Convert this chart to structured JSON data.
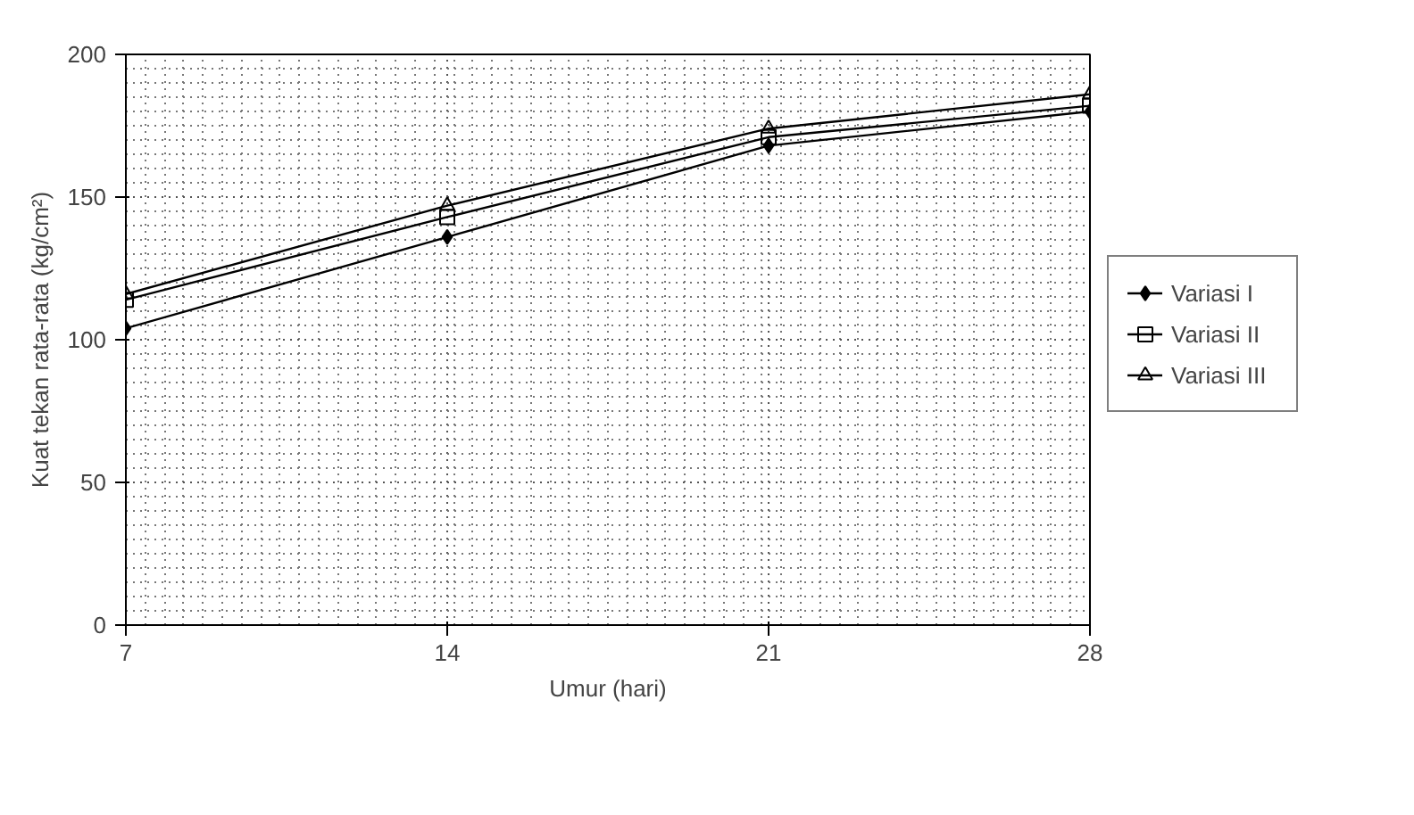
{
  "chart_data": {
    "type": "line",
    "xlabel": "Umur (hari)",
    "ylabel": "Kuat tekan rata-rata (kg/cm²)",
    "x": [
      7,
      14,
      21,
      28
    ],
    "xlim": [
      7,
      28
    ],
    "xticks": [
      7,
      14,
      21,
      28
    ],
    "ylim": [
      0,
      200
    ],
    "yticks": [
      0,
      50,
      100,
      150,
      200
    ],
    "grid": true,
    "legend": "right",
    "series": [
      {
        "name": "Variasi I",
        "color": "#000000",
        "marker": "diamond",
        "values": [
          104,
          136,
          168,
          180
        ]
      },
      {
        "name": "Variasi II",
        "color": "#000000",
        "marker": "square",
        "values": [
          114,
          143,
          171,
          182
        ]
      },
      {
        "name": "Variasi III",
        "color": "#000000",
        "marker": "triangle",
        "values": [
          116,
          147,
          174,
          186
        ]
      }
    ]
  }
}
